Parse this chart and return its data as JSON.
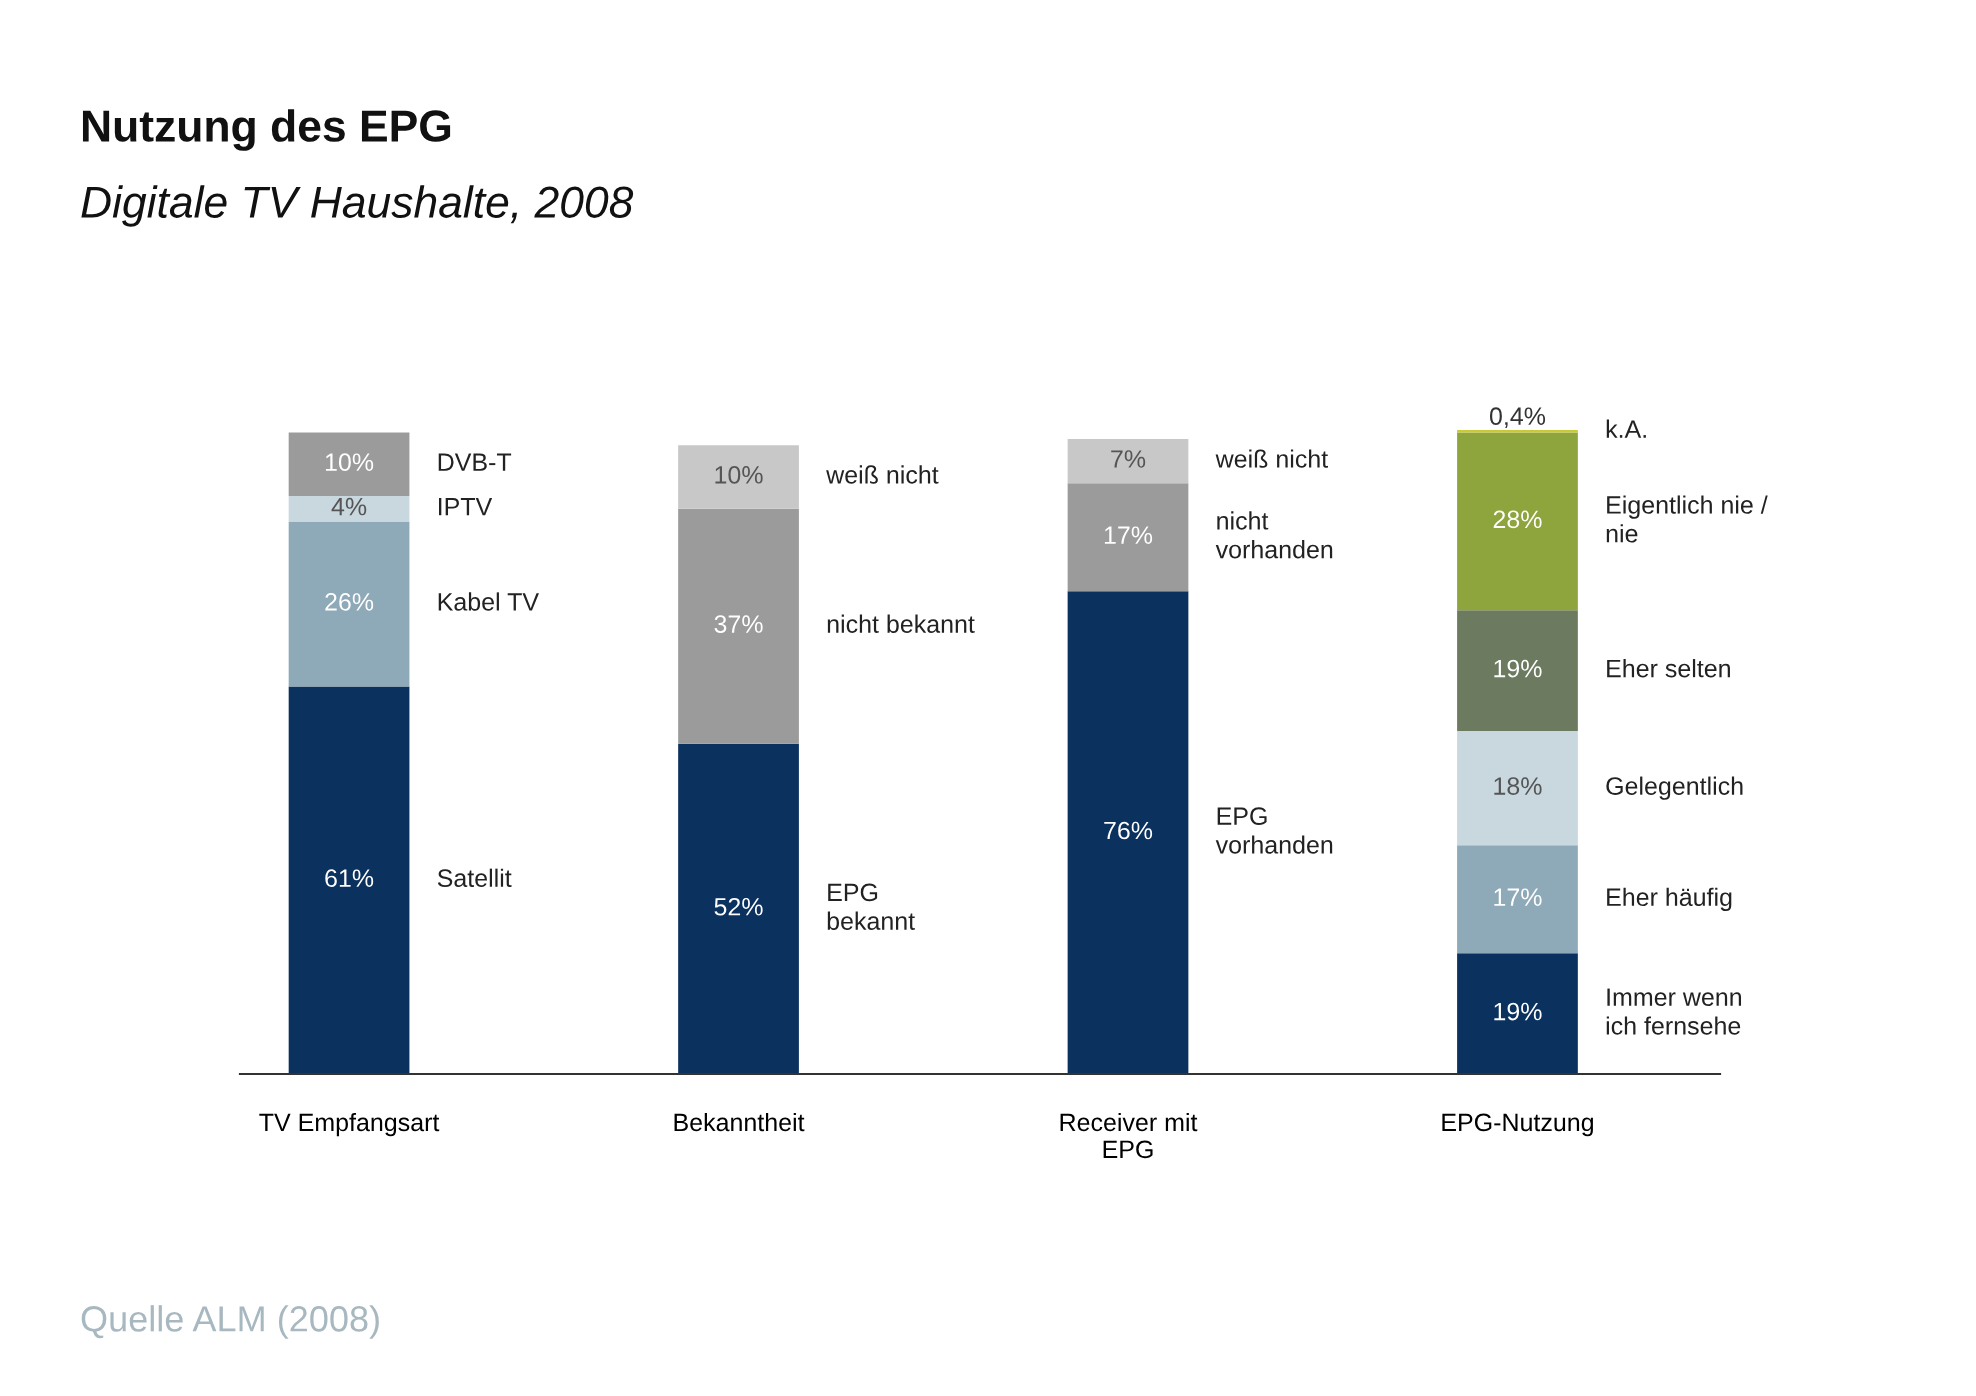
{
  "chart_data": {
    "type": "bar",
    "stacked": true,
    "title": "Nutzung des EPG",
    "subtitle": "Digitale TV Haushalte, 2008",
    "categories": [
      "TV Empfangsart",
      "Bekanntheit",
      "Receiver mit\nEPG",
      "EPG-Nutzung"
    ],
    "legend": false,
    "grid": false,
    "tick_labels": "x",
    "series": [
      {
        "name": "Satellit",
        "color": "#0b315e",
        "values": [
          61,
          null,
          null,
          null
        ],
        "value_labels": [
          "61%",
          null,
          null,
          null
        ]
      },
      {
        "name": "Kabel TV",
        "color": "#8ea9b8",
        "values": [
          26,
          null,
          null,
          null
        ],
        "value_labels": [
          "26%",
          null,
          null,
          null
        ]
      },
      {
        "name": "IPTV",
        "color": "#c9d7df",
        "values": [
          4,
          null,
          null,
          null
        ],
        "value_labels": [
          "4%",
          null,
          null,
          null
        ]
      },
      {
        "name": "DVB-T",
        "color": "#9b9b9b",
        "values": [
          10,
          null,
          null,
          null
        ],
        "value_labels": [
          "10%",
          null,
          null,
          null
        ]
      },
      {
        "name": "EPG\nbekannt",
        "color": "#0b315e",
        "values": [
          null,
          52,
          null,
          null
        ],
        "value_labels": [
          null,
          "52%",
          null,
          null
        ]
      },
      {
        "name": "nicht bekannt",
        "color": "#9b9b9b",
        "values": [
          null,
          37,
          null,
          null
        ],
        "value_labels": [
          null,
          "37%",
          null,
          null
        ]
      },
      {
        "name": "weiß nicht",
        "color": "#c8c8c8",
        "values": [
          null,
          10,
          null,
          null
        ],
        "value_labels": [
          null,
          "10%",
          null,
          null
        ]
      },
      {
        "name": "EPG\nvorhanden",
        "color": "#0b315e",
        "values": [
          null,
          null,
          76,
          null
        ],
        "value_labels": [
          null,
          null,
          "76%",
          null
        ]
      },
      {
        "name": "nicht\nvorhanden",
        "color": "#9b9b9b",
        "values": [
          null,
          null,
          17,
          null
        ],
        "value_labels": [
          null,
          null,
          "17%",
          null
        ]
      },
      {
        "name": "weiß nicht",
        "color": "#c8c8c8",
        "values": [
          null,
          null,
          7,
          null
        ],
        "value_labels": [
          null,
          null,
          "7%",
          null
        ]
      },
      {
        "name": "Immer wenn\nich fernsehe",
        "color": "#0b315e",
        "values": [
          null,
          null,
          null,
          19
        ],
        "value_labels": [
          null,
          null,
          null,
          "19%"
        ]
      },
      {
        "name": "Eher häufig",
        "color": "#8ea9b8",
        "values": [
          null,
          null,
          null,
          17
        ],
        "value_labels": [
          null,
          null,
          null,
          "17%"
        ]
      },
      {
        "name": "Gelegentlich",
        "color": "#c9d7df",
        "values": [
          null,
          null,
          null,
          18
        ],
        "value_labels": [
          null,
          null,
          null,
          "18%"
        ]
      },
      {
        "name": "Eher selten",
        "color": "#6c7a60",
        "values": [
          null,
          null,
          null,
          19
        ],
        "value_labels": [
          null,
          null,
          null,
          "19%"
        ]
      },
      {
        "name": "Eigentlich nie /\nnie",
        "color": "#8ea43c",
        "values": [
          null,
          null,
          null,
          28
        ],
        "value_labels": [
          null,
          null,
          null,
          "28%"
        ]
      },
      {
        "name": "k.A.",
        "color": "#c9c93a",
        "values": [
          null,
          null,
          null,
          0.4
        ],
        "value_labels": [
          null,
          null,
          null,
          "0,4%"
        ]
      }
    ],
    "annotations": [
      "Quelle ALM (2008)"
    ]
  }
}
